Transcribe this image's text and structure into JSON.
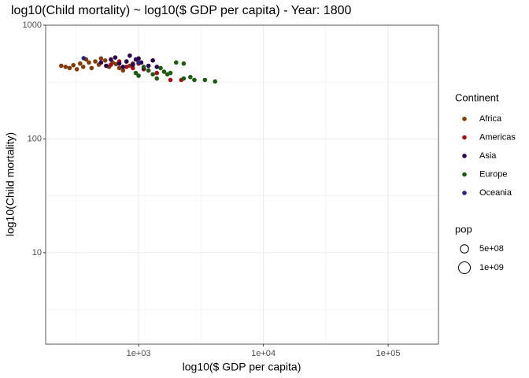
{
  "chart_data": {
    "type": "scatter",
    "title": "log10(Child mortality) ~ log10($ GDP per capita) - Year: 1800",
    "x_label": "log10($ GDP per capita)",
    "y_label": "log10(Child mortality)",
    "log_x": true,
    "log_y": true,
    "grid": true,
    "xlim": [
      180,
      253000
    ],
    "ylim": [
      1.57,
      1000
    ],
    "xticks": [
      {
        "value": 1000,
        "label": "1e+03"
      },
      {
        "value": 10000,
        "label": "1e+04"
      },
      {
        "value": 100000,
        "label": "1e+05"
      }
    ],
    "x_minor_ticks": [
      316.2,
      3162,
      31623
    ],
    "yticks": [
      10,
      100,
      1000
    ],
    "y_minor_ticks": [
      3.162,
      31.62,
      316.2
    ],
    "legend_title": "Continent",
    "legend_position": "right",
    "series": [
      {
        "name": "Africa",
        "color": "#7f3b08",
        "x": [
          240,
          260,
          280,
          300,
          320,
          340,
          360,
          380,
          400,
          420,
          450,
          480,
          500,
          540,
          580,
          620,
          660,
          700,
          750,
          800,
          850,
          900
        ],
        "values": [
          440,
          430,
          420,
          445,
          410,
          460,
          430,
          500,
          470,
          420,
          480,
          450,
          510,
          490,
          430,
          470,
          455,
          420,
          400,
          480,
          440,
          460
        ]
      },
      {
        "name": "Americas",
        "color": "#a50f15",
        "x": [
          600,
          700,
          800,
          900,
          1000,
          1100,
          1200,
          1400,
          1800,
          2200
        ],
        "values": [
          450,
          480,
          430,
          420,
          460,
          410,
          400,
          380,
          330,
          330
        ]
      },
      {
        "name": "Asia",
        "color": "#2d004b",
        "x": [
          500,
          550,
          600,
          650,
          700,
          750,
          800,
          850,
          900,
          950,
          1000,
          1050,
          1100,
          1200,
          1300,
          1400
        ],
        "values": [
          470,
          440,
          500,
          520,
          460,
          430,
          480,
          540,
          450,
          500,
          510,
          470,
          420,
          440,
          490,
          430
        ]
      },
      {
        "name": "Europe",
        "color": "#1e5b12",
        "x": [
          950,
          1000,
          1100,
          1200,
          1300,
          1400,
          1500,
          1600,
          1700,
          1800,
          2000,
          2300,
          2600,
          2800,
          3400,
          4100,
          2300
        ],
        "values": [
          380,
          360,
          430,
          400,
          370,
          340,
          420,
          390,
          370,
          380,
          470,
          340,
          350,
          330,
          330,
          320,
          460
        ]
      },
      {
        "name": "Oceania",
        "color": "#26267f",
        "x": [
          363,
          1000
        ],
        "values": [
          513,
          470
        ]
      }
    ],
    "size_legend": {
      "title": "pop",
      "breaks": [
        {
          "value": 500000000,
          "label": "5e+08"
        },
        {
          "value": 1000000000,
          "label": "1e+09"
        }
      ]
    }
  }
}
